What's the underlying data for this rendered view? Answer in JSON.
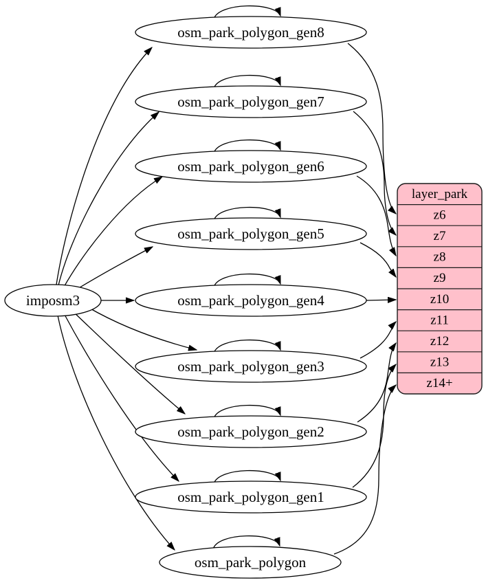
{
  "diagram": {
    "kind": "etl-dependency-graph",
    "colors": {
      "background": "#ffffff",
      "edge": "#000000",
      "node_fill": "#ffffff",
      "node_border": "#000000",
      "layer_fill": "#ffc0cb",
      "layer_border": "#1a1a1a",
      "text": "#000000"
    },
    "source_node": {
      "id": "imposm3",
      "label": "imposm3"
    },
    "table_nodes": [
      {
        "id": "osm_park_polygon_gen8",
        "label": "osm_park_polygon_gen8"
      },
      {
        "id": "osm_park_polygon_gen7",
        "label": "osm_park_polygon_gen7"
      },
      {
        "id": "osm_park_polygon_gen6",
        "label": "osm_park_polygon_gen6"
      },
      {
        "id": "osm_park_polygon_gen5",
        "label": "osm_park_polygon_gen5"
      },
      {
        "id": "osm_park_polygon_gen4",
        "label": "osm_park_polygon_gen4"
      },
      {
        "id": "osm_park_polygon_gen3",
        "label": "osm_park_polygon_gen3"
      },
      {
        "id": "osm_park_polygon_gen2",
        "label": "osm_park_polygon_gen2"
      },
      {
        "id": "osm_park_polygon_gen1",
        "label": "osm_park_polygon_gen1"
      },
      {
        "id": "osm_park_polygon",
        "label": "osm_park_polygon"
      }
    ],
    "layer_node": {
      "id": "layer_park",
      "title": "layer_park",
      "rows": [
        "z6",
        "z7",
        "z8",
        "z9",
        "z10",
        "z11",
        "z12",
        "z13",
        "z14+"
      ]
    },
    "edges": {
      "from_source": [
        {
          "from": "imposm3",
          "to": "osm_park_polygon_gen8"
        },
        {
          "from": "imposm3",
          "to": "osm_park_polygon_gen7"
        },
        {
          "from": "imposm3",
          "to": "osm_park_polygon_gen6"
        },
        {
          "from": "imposm3",
          "to": "osm_park_polygon_gen5"
        },
        {
          "from": "imposm3",
          "to": "osm_park_polygon_gen4"
        },
        {
          "from": "imposm3",
          "to": "osm_park_polygon_gen3"
        },
        {
          "from": "imposm3",
          "to": "osm_park_polygon_gen2"
        },
        {
          "from": "imposm3",
          "to": "osm_park_polygon_gen1"
        },
        {
          "from": "imposm3",
          "to": "osm_park_polygon"
        }
      ],
      "self_loops": [
        "osm_park_polygon_gen8",
        "osm_park_polygon_gen7",
        "osm_park_polygon_gen6",
        "osm_park_polygon_gen5",
        "osm_park_polygon_gen4",
        "osm_park_polygon_gen3",
        "osm_park_polygon_gen2",
        "osm_park_polygon_gen1",
        "osm_park_polygon"
      ],
      "to_layer": [
        {
          "from": "osm_park_polygon_gen8",
          "to": "z6"
        },
        {
          "from": "osm_park_polygon_gen7",
          "to": "z7"
        },
        {
          "from": "osm_park_polygon_gen6",
          "to": "z8"
        },
        {
          "from": "osm_park_polygon_gen5",
          "to": "z9"
        },
        {
          "from": "osm_park_polygon_gen4",
          "to": "z10"
        },
        {
          "from": "osm_park_polygon_gen3",
          "to": "z11"
        },
        {
          "from": "osm_park_polygon_gen2",
          "to": "z12"
        },
        {
          "from": "osm_park_polygon_gen1",
          "to": "z13"
        },
        {
          "from": "osm_park_polygon",
          "to": "z14+"
        }
      ]
    }
  }
}
